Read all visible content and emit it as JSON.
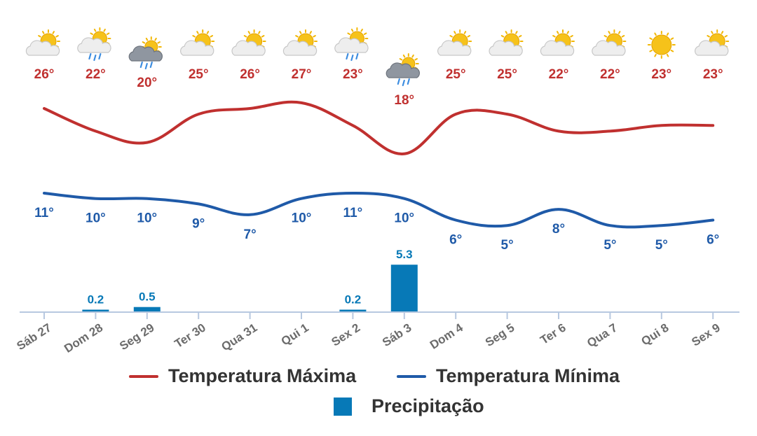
{
  "chart_data": {
    "type": "line",
    "categories": [
      "Sáb 27",
      "Dom 28",
      "Seg 29",
      "Ter 30",
      "Qua 31",
      "Qui 1",
      "Sex 2",
      "Sáb 3",
      "Dom 4",
      "Seg 5",
      "Ter 6",
      "Qua 7",
      "Qui 8",
      "Sex 9"
    ],
    "weather_icons": [
      "partly-cloudy-icon",
      "sun-rain-icon",
      "rain-cloud-icon",
      "partly-cloudy-icon",
      "partly-cloudy-icon",
      "partly-cloudy-icon",
      "sun-rain-icon",
      "rain-cloud-icon",
      "partly-cloudy-icon",
      "partly-cloudy-icon",
      "partly-cloudy-icon",
      "partly-cloudy-icon",
      "sun-icon",
      "partly-cloudy-icon"
    ],
    "series": [
      {
        "name": "Temperatura Máxima",
        "color": "#c0302f",
        "values": [
          26,
          22,
          20,
          25,
          26,
          27,
          23,
          18,
          25,
          25,
          22,
          22,
          23,
          23
        ]
      },
      {
        "name": "Temperatura Mínima",
        "color": "#1f5aa8",
        "values": [
          11,
          10,
          10,
          9,
          7,
          10,
          11,
          10,
          6,
          5,
          8,
          5,
          5,
          6
        ]
      },
      {
        "name": "Precipitação",
        "color": "#0779b7",
        "type": "bar",
        "values": [
          null,
          0.2,
          0.5,
          null,
          null,
          null,
          0.2,
          5.3,
          null,
          null,
          null,
          null,
          null,
          null
        ]
      }
    ],
    "max_labels": [
      "26°",
      "22°",
      "20°",
      "25°",
      "26°",
      "27°",
      "23°",
      "18°",
      "25°",
      "25°",
      "22°",
      "22°",
      "23°",
      "23°"
    ],
    "min_labels": [
      "11°",
      "10°",
      "10°",
      "9°",
      "7°",
      "10°",
      "11°",
      "10°",
      "6°",
      "5°",
      "8°",
      "5°",
      "5°",
      "6°"
    ],
    "precip_labels": [
      "",
      "0.2",
      "0.5",
      "",
      "",
      "",
      "0.2",
      "5.3",
      "",
      "",
      "",
      "",
      "",
      ""
    ],
    "grid": false,
    "legend_position": "bottom"
  },
  "legend": {
    "max_label": "Temperatura Máxima",
    "min_label": "Temperatura Mínima",
    "precip_label": "Precipitação"
  }
}
